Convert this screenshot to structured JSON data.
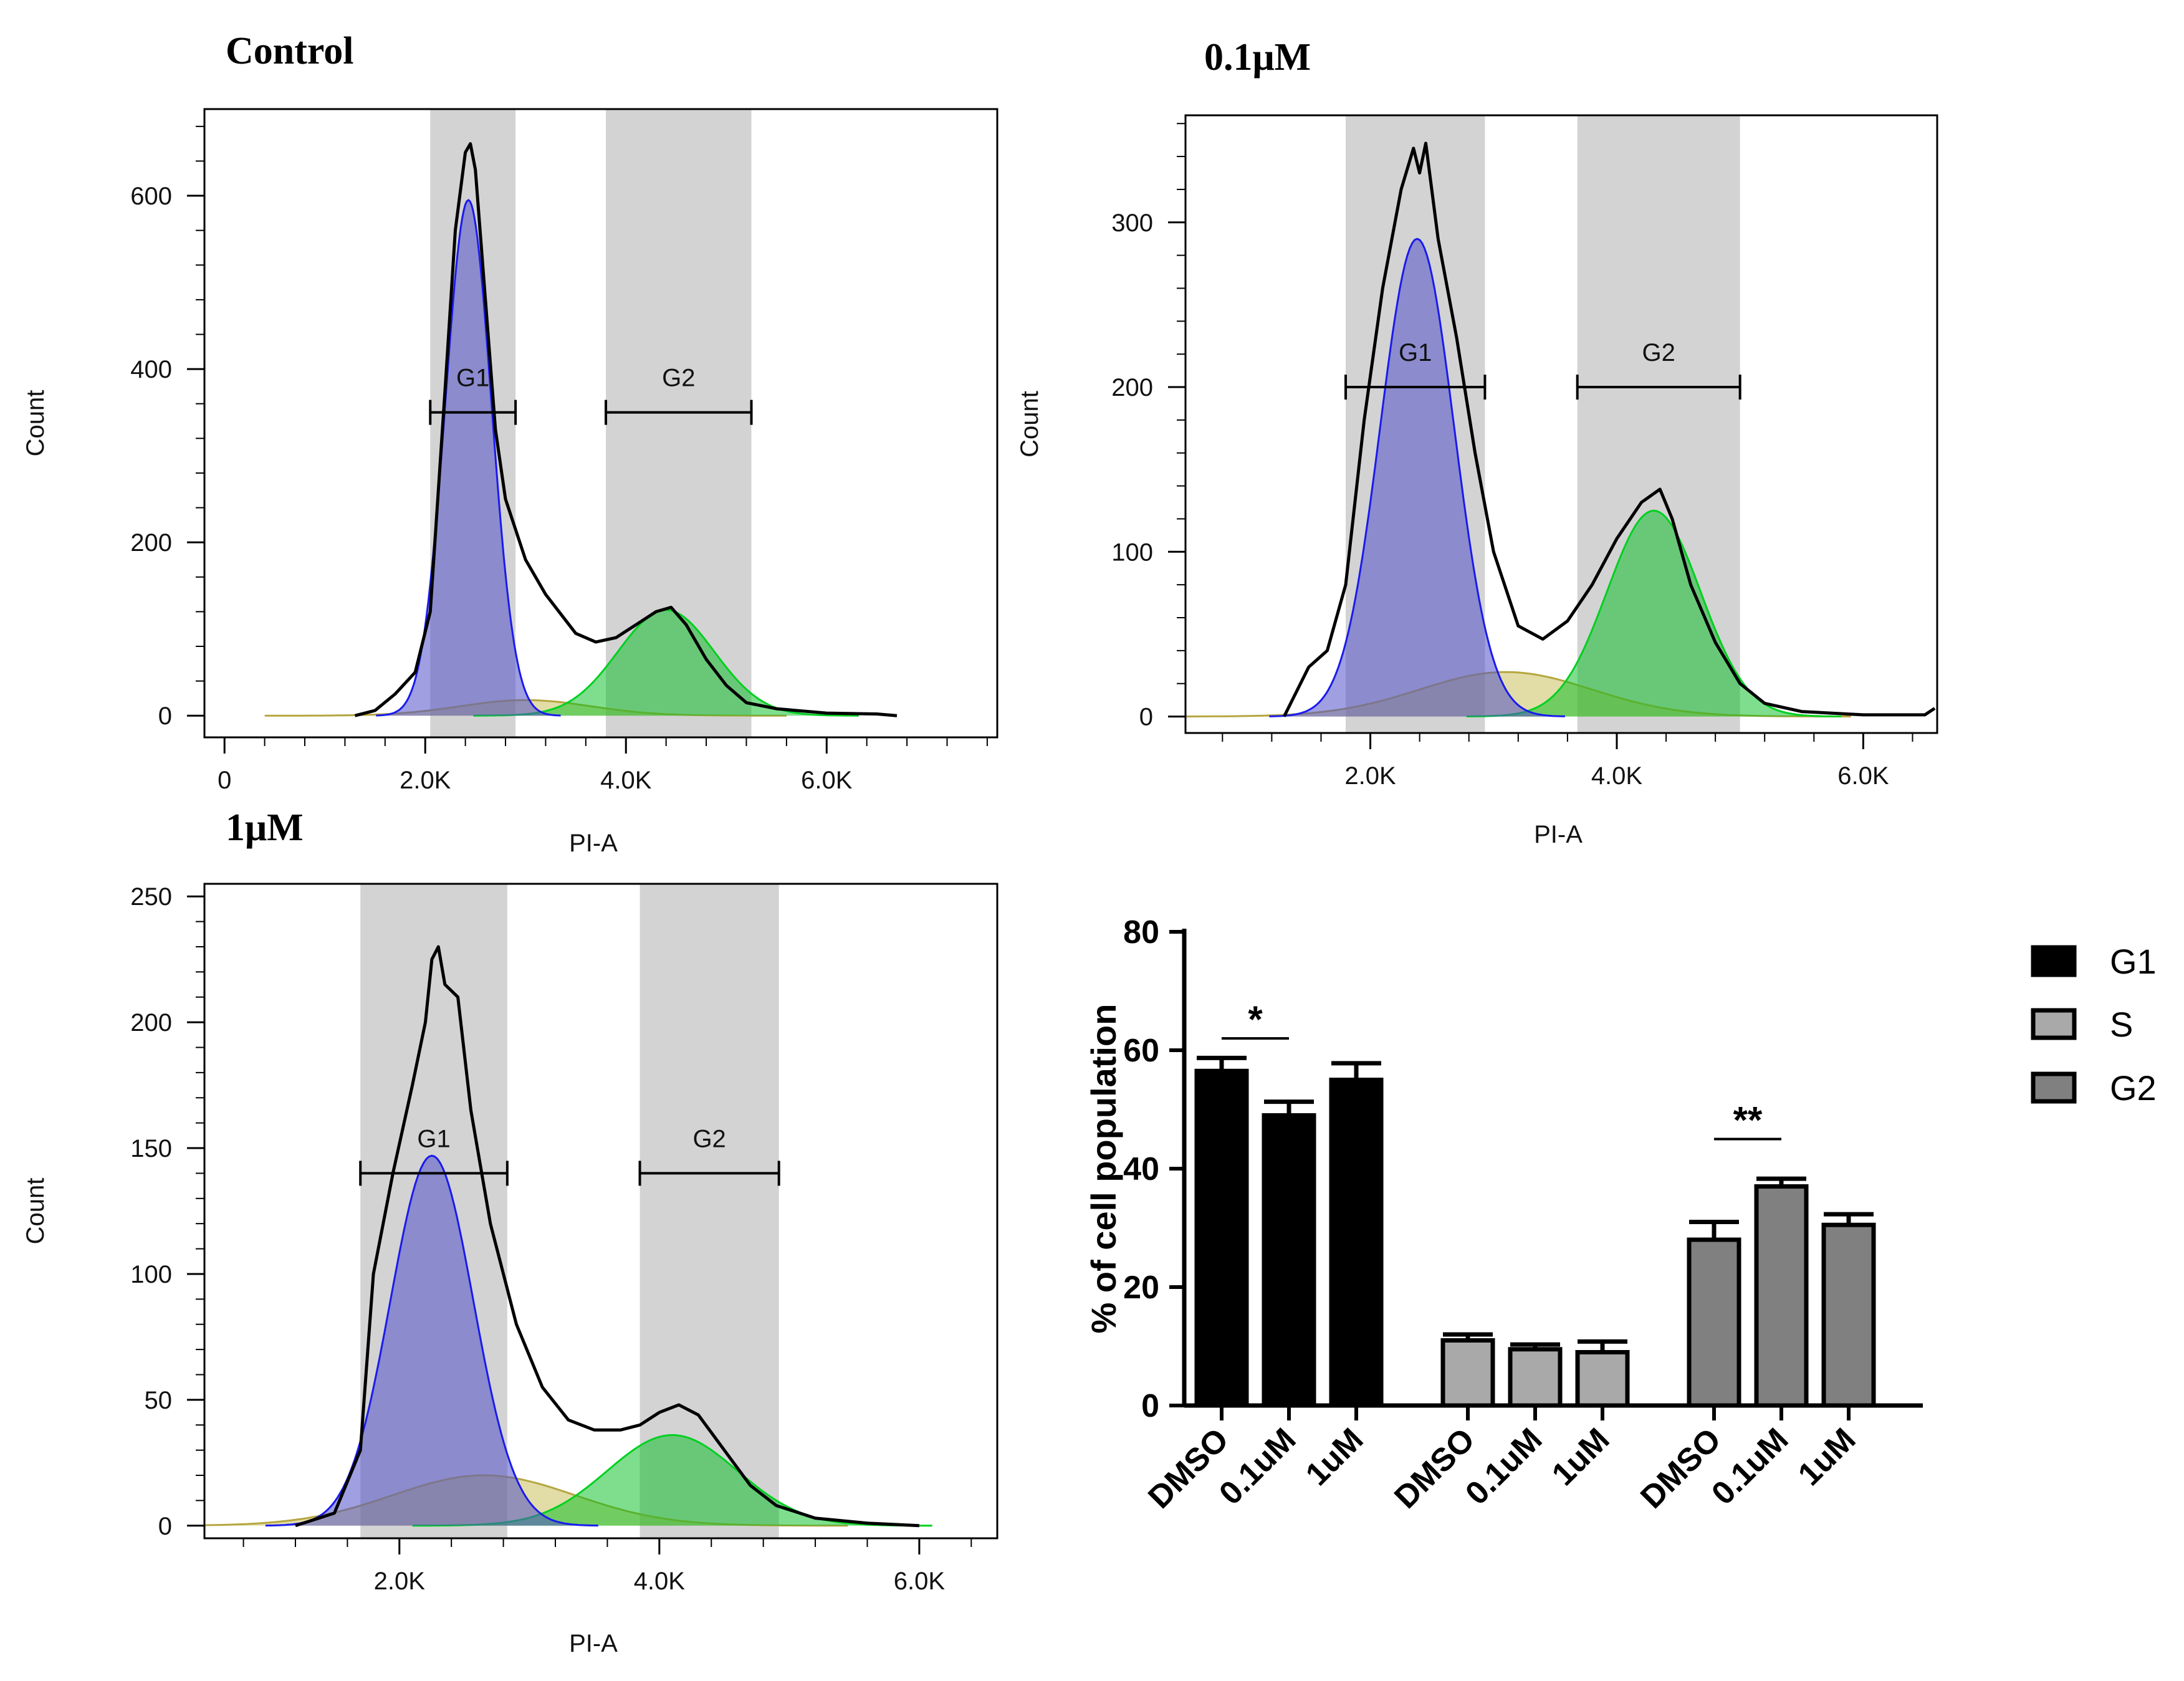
{
  "chart_data": [
    {
      "type": "histogram",
      "title": "Control",
      "xlabel": "PI-A",
      "ylabel": "Count",
      "xlim": [
        -200,
        7700
      ],
      "ylim": [
        -25,
        700
      ],
      "xticks": [
        {
          "v": 0,
          "label": "0"
        },
        {
          "v": 2000,
          "label": "2.0K"
        },
        {
          "v": 4000,
          "label": "4.0K"
        },
        {
          "v": 6000,
          "label": "6.0K"
        }
      ],
      "yticks": [
        {
          "v": 0,
          "label": "0"
        },
        {
          "v": 200,
          "label": "200"
        },
        {
          "v": 400,
          "label": "400"
        },
        {
          "v": 600,
          "label": "600"
        }
      ],
      "gates": [
        {
          "name": "G1",
          "x1": 2050,
          "x2": 2900,
          "bar_y": 350
        },
        {
          "name": "G2",
          "x1": 3800,
          "x2": 5250,
          "bar_y": 350
        }
      ],
      "fits": {
        "g1": {
          "mean": 2430,
          "sd": 230,
          "amp": 595
        },
        "s": {
          "mean": 3000,
          "sd": 650,
          "amp": 18
        },
        "g2": {
          "mean": 4400,
          "sd": 480,
          "amp": 122
        }
      },
      "histogram": [
        [
          1300,
          0
        ],
        [
          1500,
          6
        ],
        [
          1700,
          25
        ],
        [
          1900,
          50
        ],
        [
          2050,
          120
        ],
        [
          2200,
          380
        ],
        [
          2300,
          560
        ],
        [
          2400,
          650
        ],
        [
          2450,
          660
        ],
        [
          2500,
          630
        ],
        [
          2600,
          480
        ],
        [
          2700,
          330
        ],
        [
          2800,
          250
        ],
        [
          3000,
          180
        ],
        [
          3200,
          140
        ],
        [
          3500,
          95
        ],
        [
          3700,
          85
        ],
        [
          3900,
          90
        ],
        [
          4100,
          105
        ],
        [
          4300,
          120
        ],
        [
          4450,
          125
        ],
        [
          4600,
          105
        ],
        [
          4800,
          65
        ],
        [
          5000,
          35
        ],
        [
          5200,
          15
        ],
        [
          5500,
          8
        ],
        [
          6000,
          3
        ],
        [
          6500,
          2
        ],
        [
          6700,
          0
        ]
      ]
    },
    {
      "type": "histogram",
      "title": "0.1μM",
      "xlabel": "PI-A",
      "ylabel": "Count",
      "xlim": [
        500,
        6600
      ],
      "ylim": [
        -10,
        365
      ],
      "xticks": [
        {
          "v": 2000,
          "label": "2.0K"
        },
        {
          "v": 4000,
          "label": "4.0K"
        },
        {
          "v": 6000,
          "label": "6.0K"
        }
      ],
      "yticks": [
        {
          "v": 0,
          "label": "0"
        },
        {
          "v": 100,
          "label": "100"
        },
        {
          "v": 200,
          "label": "200"
        },
        {
          "v": 300,
          "label": "300"
        }
      ],
      "gates": [
        {
          "name": "G1",
          "x1": 1800,
          "x2": 2930,
          "bar_y": 200
        },
        {
          "name": "G2",
          "x1": 3680,
          "x2": 5000,
          "bar_y": 200
        }
      ],
      "fits": {
        "g1": {
          "mean": 2380,
          "sd": 300,
          "amp": 290
        },
        "s": {
          "mean": 3100,
          "sd": 700,
          "amp": 27
        },
        "g2": {
          "mean": 4300,
          "sd": 380,
          "amp": 125
        }
      },
      "histogram": [
        [
          1300,
          0
        ],
        [
          1500,
          30
        ],
        [
          1650,
          40
        ],
        [
          1800,
          80
        ],
        [
          1950,
          180
        ],
        [
          2100,
          260
        ],
        [
          2250,
          320
        ],
        [
          2350,
          345
        ],
        [
          2400,
          330
        ],
        [
          2450,
          348
        ],
        [
          2550,
          290
        ],
        [
          2700,
          230
        ],
        [
          2850,
          160
        ],
        [
          3000,
          100
        ],
        [
          3200,
          55
        ],
        [
          3400,
          47
        ],
        [
          3600,
          58
        ],
        [
          3800,
          80
        ],
        [
          4000,
          108
        ],
        [
          4200,
          130
        ],
        [
          4350,
          138
        ],
        [
          4450,
          120
        ],
        [
          4600,
          80
        ],
        [
          4800,
          45
        ],
        [
          5000,
          20
        ],
        [
          5200,
          8
        ],
        [
          5500,
          3
        ],
        [
          6000,
          1
        ],
        [
          6500,
          1
        ],
        [
          6580,
          5
        ]
      ]
    },
    {
      "type": "histogram",
      "title": "1μM",
      "xlabel": "PI-A",
      "ylabel": "Count",
      "xlim": [
        500,
        6600
      ],
      "ylim": [
        -5,
        255
      ],
      "xticks": [
        {
          "v": 2000,
          "label": "2.0K"
        },
        {
          "v": 4000,
          "label": "4.0K"
        },
        {
          "v": 6000,
          "label": "6.0K"
        }
      ],
      "yticks": [
        {
          "v": 0,
          "label": "0"
        },
        {
          "v": 50,
          "label": "50"
        },
        {
          "v": 100,
          "label": "100"
        },
        {
          "v": 150,
          "label": "150"
        },
        {
          "v": 200,
          "label": "200"
        },
        {
          "v": 250,
          "label": "250"
        }
      ],
      "gates": [
        {
          "name": "G1",
          "x1": 1700,
          "x2": 2830,
          "bar_y": 140
        },
        {
          "name": "G2",
          "x1": 3850,
          "x2": 4920,
          "bar_y": 140
        }
      ],
      "fits": {
        "g1": {
          "mean": 2250,
          "sd": 320,
          "amp": 147
        },
        "s": {
          "mean": 2650,
          "sd": 700,
          "amp": 20
        },
        "g2": {
          "mean": 4100,
          "sd": 500,
          "amp": 36
        }
      },
      "histogram": [
        [
          1200,
          0
        ],
        [
          1500,
          5
        ],
        [
          1700,
          30
        ],
        [
          1800,
          100
        ],
        [
          1950,
          140
        ],
        [
          2100,
          175
        ],
        [
          2200,
          200
        ],
        [
          2250,
          225
        ],
        [
          2300,
          230
        ],
        [
          2350,
          215
        ],
        [
          2450,
          210
        ],
        [
          2550,
          165
        ],
        [
          2700,
          120
        ],
        [
          2900,
          80
        ],
        [
          3100,
          55
        ],
        [
          3300,
          42
        ],
        [
          3500,
          38
        ],
        [
          3700,
          38
        ],
        [
          3850,
          40
        ],
        [
          4000,
          45
        ],
        [
          4150,
          48
        ],
        [
          4300,
          44
        ],
        [
          4500,
          30
        ],
        [
          4700,
          16
        ],
        [
          4900,
          8
        ],
        [
          5200,
          3
        ],
        [
          5600,
          1
        ],
        [
          6000,
          0
        ]
      ]
    },
    {
      "type": "bar",
      "ylabel": "% of cell population",
      "ylim": [
        0,
        80
      ],
      "yticks": [
        0,
        20,
        40,
        60,
        80
      ],
      "categories": [
        "DMSO",
        "0.1uM",
        "1uM"
      ],
      "series": [
        {
          "name": "G1",
          "color": "#000000",
          "values": [
            56.5,
            49,
            55
          ],
          "errors": [
            2.2,
            2.3,
            2.8
          ]
        },
        {
          "name": "S",
          "color": "#a9a9a9",
          "values": [
            11,
            9.5,
            9
          ],
          "errors": [
            1,
            0.8,
            1.8
          ]
        },
        {
          "name": "G2",
          "color": "#808080",
          "values": [
            28,
            37,
            30.5
          ],
          "errors": [
            3,
            1.3,
            1.8
          ]
        }
      ],
      "significance": [
        {
          "label": "*",
          "group": 0,
          "from": 0,
          "to": 1,
          "y": 62
        },
        {
          "label": "**",
          "group": 2,
          "from": 0,
          "to": 1,
          "y": 45
        }
      ]
    }
  ]
}
